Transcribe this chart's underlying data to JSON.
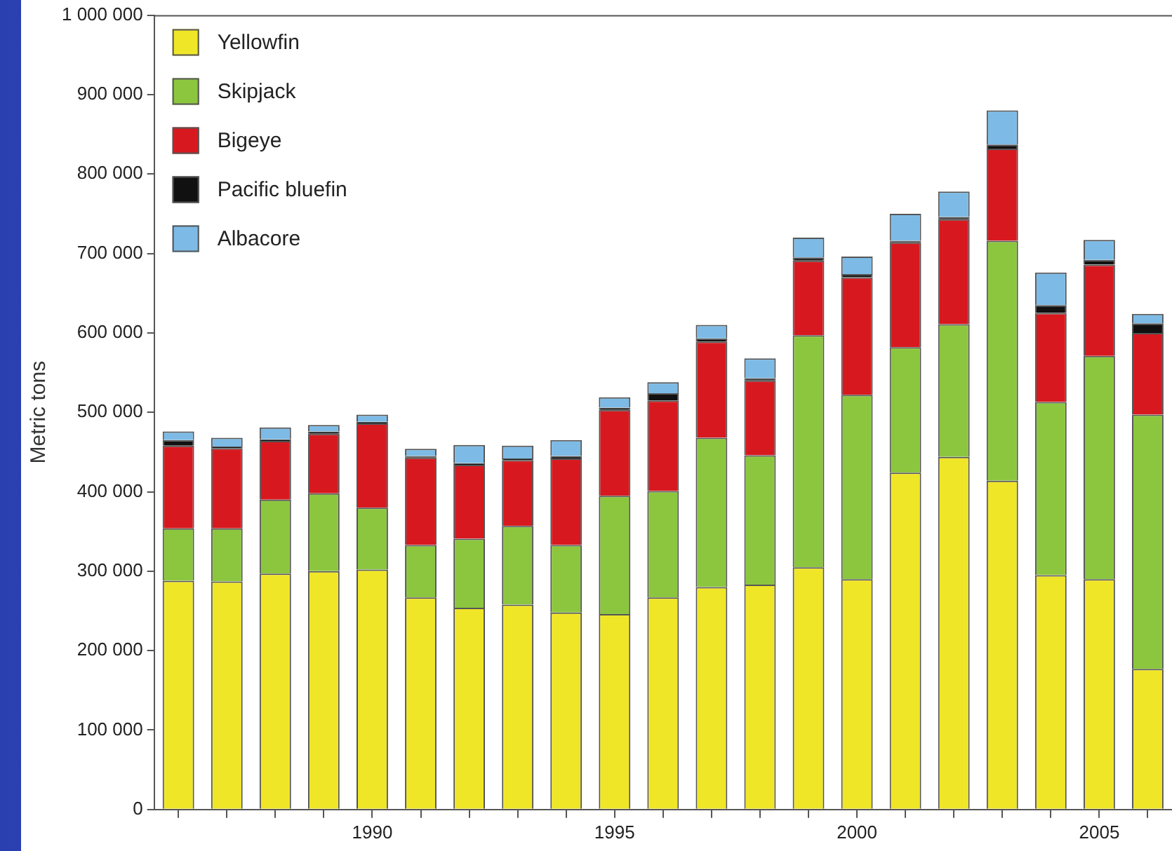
{
  "chart_data": {
    "type": "bar",
    "stacked": true,
    "ylabel": "Metric tons",
    "categories": [
      null,
      null,
      null,
      null,
      "1990",
      null,
      null,
      null,
      null,
      "1995",
      null,
      null,
      null,
      null,
      "2000",
      null,
      null,
      null,
      null,
      "2005",
      null
    ],
    "series": [
      {
        "name": "Yellowfin",
        "color": "#f0e628",
        "values": [
          288000,
          287000,
          297000,
          300000,
          302000,
          267000,
          254000,
          258000,
          248000,
          246000,
          267000,
          280000,
          283000,
          305000,
          290000,
          424000,
          444000,
          414000,
          295000,
          290000,
          177000
        ]
      },
      {
        "name": "Skipjack",
        "color": "#8cc63f",
        "values": [
          66000,
          67000,
          93000,
          98000,
          78000,
          66000,
          87000,
          99000,
          85000,
          149000,
          134000,
          188000,
          163000,
          292000,
          232000,
          158000,
          167000,
          302000,
          218000,
          281000,
          320000
        ]
      },
      {
        "name": "Bigeye",
        "color": "#d7191f",
        "values": [
          104000,
          101000,
          74000,
          75000,
          106000,
          110000,
          93000,
          83000,
          109000,
          108000,
          114000,
          121000,
          94000,
          94000,
          148000,
          132000,
          132000,
          116000,
          112000,
          115000,
          103000
        ]
      },
      {
        "name": "Pacific bluefin",
        "color": "#111111",
        "values": [
          7000,
          2000,
          2000,
          3000,
          2000,
          2000,
          2000,
          2000,
          3000,
          3000,
          9000,
          4000,
          3000,
          4000,
          4000,
          2000,
          3000,
          5000,
          10000,
          6000,
          12000
        ]
      },
      {
        "name": "Albacore",
        "color": "#7dbbe6",
        "values": [
          11000,
          11000,
          15000,
          8000,
          9000,
          9000,
          23000,
          16000,
          20000,
          13000,
          14000,
          17000,
          25000,
          25000,
          22000,
          34000,
          32000,
          43000,
          41000,
          25000,
          12000
        ]
      }
    ],
    "ylim": [
      0,
      1000000
    ],
    "yticks": [
      {
        "value": 0,
        "label": "0"
      },
      {
        "value": 100000,
        "label": "100 000"
      },
      {
        "value": 200000,
        "label": "200 000"
      },
      {
        "value": 300000,
        "label": "300 000"
      },
      {
        "value": 400000,
        "label": "400 000"
      },
      {
        "value": 500000,
        "label": "500 000"
      },
      {
        "value": 600000,
        "label": "600 000"
      },
      {
        "value": 700000,
        "label": "700 000"
      },
      {
        "value": 800000,
        "label": "800 000"
      },
      {
        "value": 900000,
        "label": "900 000"
      },
      {
        "value": 1000000,
        "label": "1 000 000"
      }
    ],
    "grid": false,
    "legend": "top left"
  }
}
